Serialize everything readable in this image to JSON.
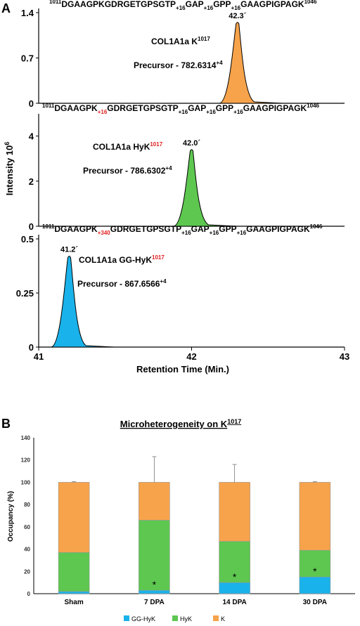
{
  "chart_data": [
    {
      "type": "area",
      "panel_label": "A",
      "ylabel": "Intensity 10",
      "ylabel_sup": "6",
      "xlabel": "Retention Time (Min.)",
      "xlim": [
        41,
        43
      ],
      "xticks": [
        "41",
        "42",
        "43"
      ],
      "subplots": [
        {
          "sequence": {
            "pre": "DGAAGPKGDRGETGPSGTP",
            "start": "1011",
            "end": "1046",
            "parts": [
              [
                "DGAAGPKGDRGETGPSGTP",
                "black",
                ""
              ],
              [
                "+16",
                "black",
                "sub"
              ],
              [
                "GAP",
                "black",
                ""
              ],
              [
                "+16",
                "black",
                "sub"
              ],
              [
                "GPP",
                "black",
                ""
              ],
              [
                "+16",
                "black",
                "sub"
              ],
              [
                "GAAGPIGPAGK",
                "black",
                ""
              ]
            ]
          },
          "label": "COL1A1a K",
          "label_sup": "1017",
          "label_sup_color": "#000000",
          "precursor": "Precursor - 782.6314",
          "precursor_sup": "+4",
          "peak_label": "42.3´",
          "peak_rt": 42.3,
          "peak_height": 1.25,
          "ylim": [
            0,
            1.4
          ],
          "yticks": [
            "0",
            "0.7",
            "1.4"
          ],
          "ytick_values": [
            0,
            0.7,
            1.4
          ],
          "fill": "#F7A34B"
        },
        {
          "sequence": {
            "start": "1011",
            "end": "1046",
            "parts": [
              [
                "DGAAGPK",
                "black",
                ""
              ],
              [
                "+16",
                "#E02020",
                "sub"
              ],
              [
                "GDRGETGPSGTP",
                "black",
                ""
              ],
              [
                "+16",
                "black",
                "sub"
              ],
              [
                "GAP",
                "black",
                ""
              ],
              [
                "+16",
                "black",
                "sub"
              ],
              [
                "GPP",
                "black",
                ""
              ],
              [
                "+16",
                "black",
                "sub"
              ],
              [
                "GAAGPIGPAGK",
                "black",
                ""
              ]
            ]
          },
          "label": "COL1A1a HyK",
          "label_sup": "1017",
          "label_sup_color": "#E02020",
          "precursor": "Precursor - 786.6302",
          "precursor_sup": "+4",
          "peak_label": "42.0´",
          "peak_rt": 42.0,
          "peak_height": 3.4,
          "ylim": [
            0,
            4.8
          ],
          "yticks": [
            "0",
            "2",
            "4"
          ],
          "ytick_values": [
            0,
            2,
            4
          ],
          "fill": "#5DC750"
        },
        {
          "sequence": {
            "start": "1011",
            "end": "1046",
            "parts": [
              [
                "DGAAGPK",
                "black",
                ""
              ],
              [
                "+340",
                "#E02020",
                "sub"
              ],
              [
                "GDRGETGPSGTP",
                "black",
                ""
              ],
              [
                "+16",
                "black",
                "sub"
              ],
              [
                "GAP",
                "black",
                ""
              ],
              [
                "+16",
                "black",
                "sub"
              ],
              [
                "GPP",
                "black",
                ""
              ],
              [
                "+16",
                "black",
                "sub"
              ],
              [
                "GAAGPIGPAGK",
                "black",
                ""
              ]
            ]
          },
          "label": "COL1A1a GG-HyK",
          "label_sup": "1017",
          "label_sup_color": "#E02020",
          "precursor": "Precursor - 867.6566",
          "precursor_sup": "+4",
          "peak_label": "41.2´",
          "peak_rt": 41.2,
          "peak_height": 0.42,
          "ylim": [
            0,
            0.5
          ],
          "yticks": [
            "0",
            "0.25",
            "0.5"
          ],
          "ytick_values": [
            0,
            0.25,
            0.5
          ],
          "fill": "#1AB2EA"
        }
      ]
    },
    {
      "type": "bar",
      "stacked": true,
      "panel_label": "B",
      "title": "Microheterogeneity on K",
      "title_sup": "1017",
      "ylabel": "Occupancy (%)",
      "xlabel": "",
      "ylim": [
        0,
        140
      ],
      "yticks": [
        0,
        20,
        40,
        60,
        80,
        100,
        120,
        140
      ],
      "categories": [
        "Sham",
        "7 DPA",
        "14 DPA",
        "30 DPA"
      ],
      "series": [
        {
          "name": "GG-HyK",
          "color": "#1AB2EA",
          "values": [
            2,
            3,
            10,
            15
          ],
          "errors": [
            1,
            1,
            1.5,
            1.5
          ]
        },
        {
          "name": "HyK",
          "color": "#5DC750",
          "values": [
            35,
            63,
            37,
            24
          ],
          "errors": [
            1,
            21,
            16,
            1
          ]
        },
        {
          "name": "K",
          "color": "#F7A34B",
          "values": [
            63,
            34,
            53,
            61
          ],
          "errors": [
            0.5,
            23,
            16,
            0.5
          ]
        }
      ],
      "significance": [
        "",
        "*",
        "*",
        "*"
      ],
      "legend": "bottom",
      "grid": false
    }
  ]
}
